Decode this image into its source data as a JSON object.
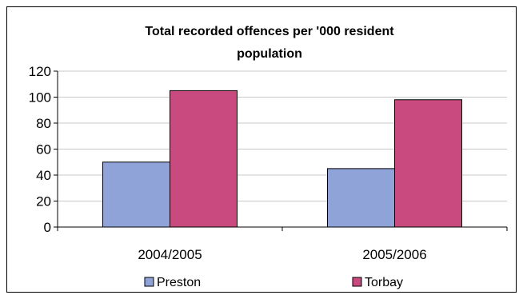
{
  "chart_data": {
    "type": "bar",
    "title_lines": [
      "Total recorded offences per '000 resident",
      "population"
    ],
    "categories": [
      "2004/2005",
      "2005/2006"
    ],
    "series": [
      {
        "name": "Preston",
        "color": "#8fa3d8",
        "values": [
          50,
          45
        ]
      },
      {
        "name": "Torbay",
        "color": "#c94a7e",
        "values": [
          105,
          98
        ]
      }
    ],
    "ylim": [
      0,
      120
    ],
    "yticks": [
      0,
      20,
      40,
      60,
      80,
      100,
      120
    ],
    "ytick_labels": [
      "0",
      "20",
      "40",
      "60",
      "80",
      "100",
      "120"
    ],
    "grid": true,
    "legend_position": "bottom"
  }
}
